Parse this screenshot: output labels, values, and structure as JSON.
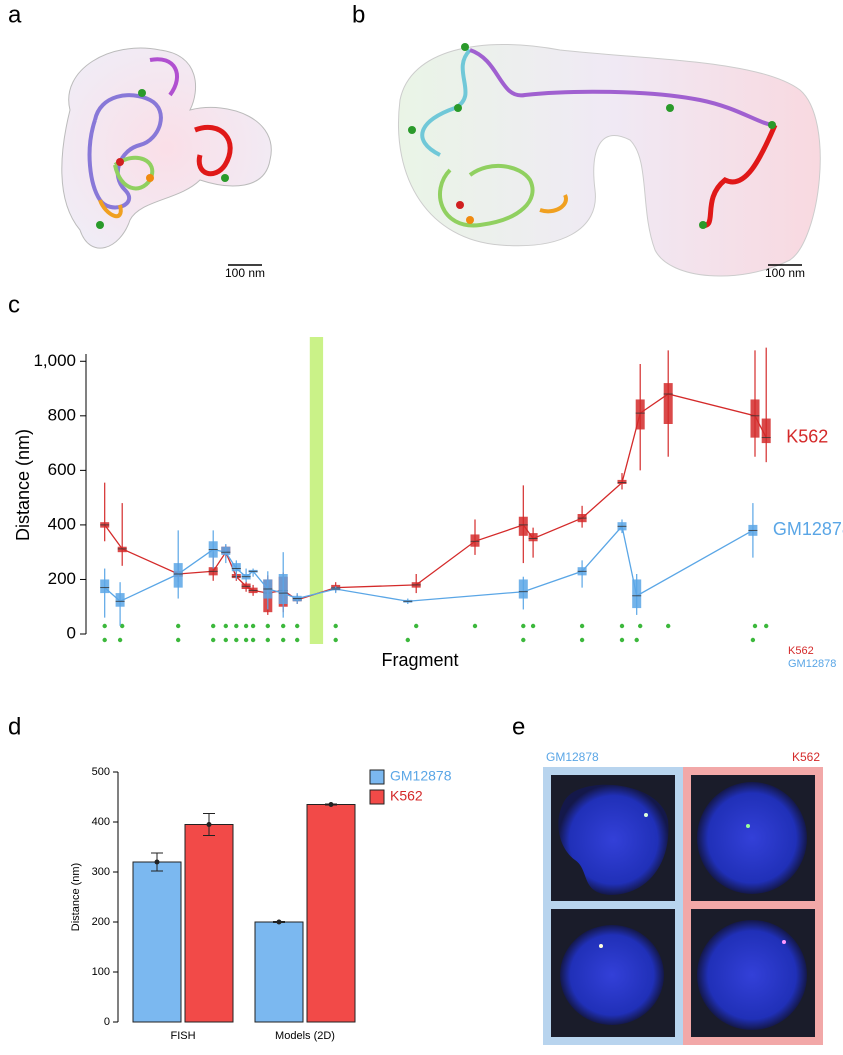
{
  "panel_labels": [
    "a",
    "b",
    "c",
    "d",
    "e"
  ],
  "scale_bars": [
    "100 nm",
    "100 nm"
  ],
  "images": {
    "left_label": "GM12878",
    "right_label": "K562"
  },
  "chart_data": [
    {
      "type": "box",
      "ylabel": "Distance (nm)",
      "xlabel": "Fragment",
      "xlim": [
        0,
        100
      ],
      "ylim": [
        0,
        1100
      ],
      "yticks": [
        0,
        200,
        400,
        600,
        800,
        {
          "value": 1000,
          "label": "1,000"
        }
      ],
      "highlight": [
        31.4,
        33.3
      ],
      "series": [
        {
          "name": "K562",
          "color": "#d42a2a",
          "x": [
            2.1,
            4.6,
            12.6,
            17.6,
            19.4,
            20.9,
            22.3,
            23.3,
            25.4,
            27.6,
            29.6,
            35.1,
            46.6,
            55,
            61.9,
            63.3,
            70.3,
            76,
            78.6,
            82.6,
            95,
            96.6
          ],
          "values": [
            400,
            312,
            220,
            230,
            300,
            210,
            175,
            160,
            150,
            160,
            125,
            170,
            180,
            340,
            400,
            350,
            425,
            555,
            810,
            880,
            800,
            720
          ],
          "q1": [
            390,
            300,
            210,
            215,
            295,
            205,
            165,
            150,
            80,
            100,
            120,
            165,
            170,
            320,
            360,
            340,
            410,
            550,
            750,
            770,
            720,
            700
          ],
          "q3": [
            410,
            320,
            230,
            245,
            320,
            220,
            185,
            170,
            200,
            210,
            135,
            180,
            190,
            365,
            430,
            370,
            440,
            565,
            860,
            920,
            860,
            790
          ],
          "low": [
            340,
            250,
            190,
            195,
            280,
            195,
            155,
            140,
            70,
            80,
            110,
            155,
            150,
            290,
            260,
            280,
            390,
            530,
            600,
            650,
            650,
            630
          ],
          "high": [
            555,
            480,
            260,
            300,
            325,
            230,
            195,
            180,
            215,
            225,
            145,
            190,
            220,
            420,
            545,
            390,
            470,
            590,
            990,
            1040,
            1040,
            1050
          ]
        },
        {
          "name": "GM12878",
          "color": "#5aa6e6",
          "x": [
            2.1,
            4.3,
            12.6,
            17.6,
            19.4,
            20.9,
            22.3,
            23.3,
            25.4,
            27.6,
            29.6,
            35.1,
            45.4,
            61.9,
            70.3,
            76,
            78.1,
            94.7
          ],
          "values": [
            170,
            120,
            220,
            310,
            300,
            240,
            210,
            230,
            165,
            150,
            130,
            165,
            120,
            155,
            230,
            395,
            140,
            380
          ],
          "q1": [
            150,
            100,
            170,
            280,
            290,
            230,
            200,
            225,
            130,
            110,
            120,
            160,
            115,
            130,
            215,
            380,
            95,
            360
          ],
          "q3": [
            200,
            150,
            260,
            340,
            320,
            260,
            220,
            235,
            200,
            220,
            140,
            170,
            125,
            200,
            245,
            410,
            200,
            400
          ],
          "low": [
            60,
            30,
            130,
            240,
            260,
            200,
            190,
            210,
            90,
            60,
            110,
            150,
            110,
            90,
            170,
            370,
            70,
            280
          ],
          "high": [
            240,
            190,
            380,
            380,
            330,
            270,
            240,
            240,
            230,
            300,
            150,
            175,
            130,
            210,
            270,
            420,
            220,
            480
          ]
        }
      ]
    },
    {
      "type": "bar",
      "ylabel": "Distance (nm)",
      "categories": [
        "FISH",
        "Models (2D)"
      ],
      "ylim": [
        0,
        500
      ],
      "yticks": [
        0,
        100,
        200,
        300,
        400,
        500
      ],
      "series": [
        {
          "name": "GM12878",
          "color": "#7bb8f0",
          "label_color": "#5aa6e6",
          "values": [
            320,
            200
          ],
          "errors": [
            18,
            1
          ]
        },
        {
          "name": "K562",
          "color": "#f24a48",
          "label_color": "#d42a2a",
          "values": [
            395,
            435
          ],
          "errors": [
            22,
            1
          ]
        }
      ]
    }
  ]
}
